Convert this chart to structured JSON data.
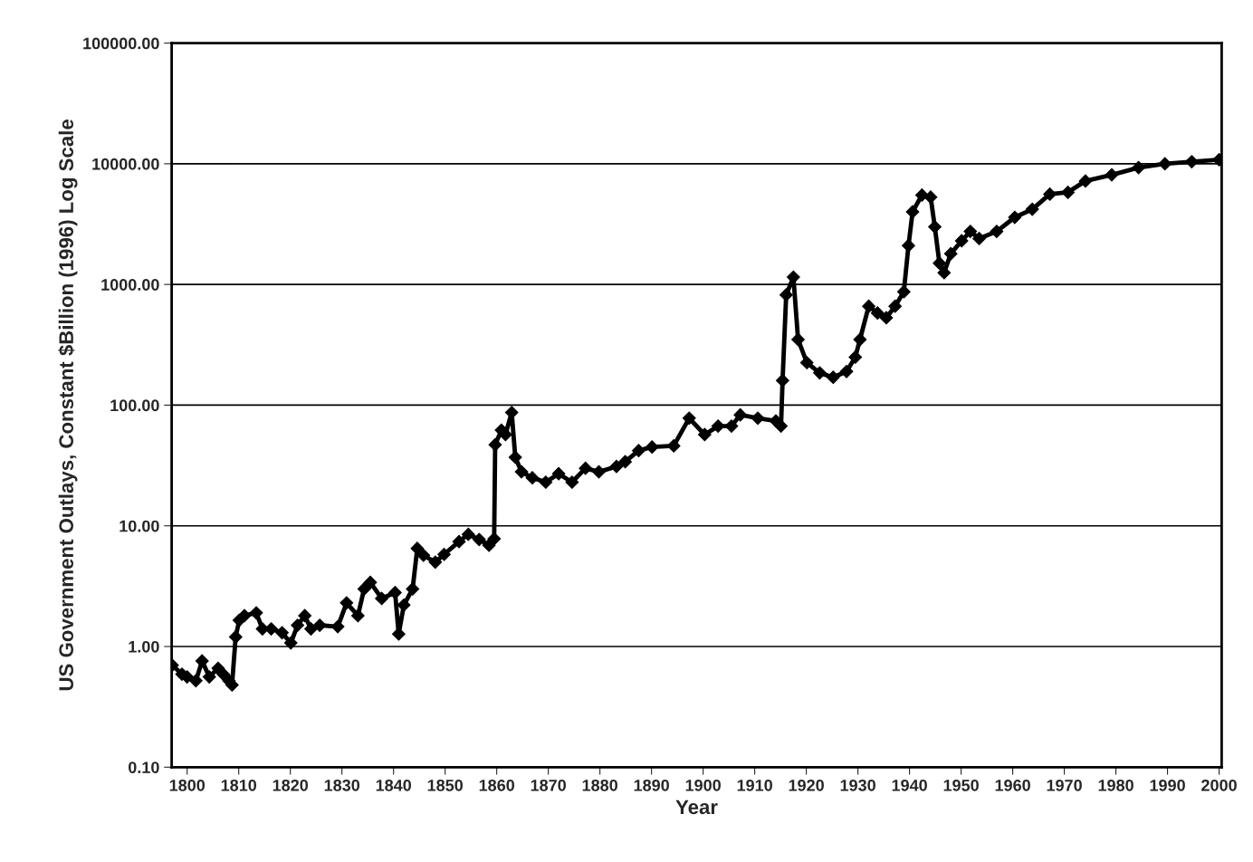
{
  "chart_data": {
    "type": "line",
    "xlabel": "Year",
    "ylabel": "US Government Outlays, Constant $Billion (1996) Log Scale",
    "log": "y",
    "grid": "y",
    "marker": "diamond",
    "line_style": "solid",
    "xlim": [
      1797,
      2000.5
    ],
    "xticks": [
      1800,
      1810,
      1820,
      1830,
      1840,
      1850,
      1860,
      1870,
      1880,
      1890,
      1900,
      1910,
      1920,
      1930,
      1940,
      1950,
      1960,
      1970,
      1980,
      1990,
      2000
    ],
    "ylim": [
      0.1,
      100000
    ],
    "yticks": [
      {
        "value": 0.1,
        "label": "0.10"
      },
      {
        "value": 1,
        "label": "1.00"
      },
      {
        "value": 10,
        "label": "10.00"
      },
      {
        "value": 100,
        "label": "100.00"
      },
      {
        "value": 1000,
        "label": "1000.00"
      },
      {
        "value": 10000,
        "label": "10000.00"
      },
      {
        "value": 100000,
        "label": "100000.00"
      }
    ],
    "series": [
      {
        "color": "#000000",
        "x": [
          1797.1,
          1799,
          1800,
          1801.7,
          1802.9,
          1804.3,
          1806,
          1807,
          1808.1,
          1808.7,
          1809.4,
          1810.1,
          1811.1,
          1813.4,
          1814.6,
          1816.3,
          1818.4,
          1820.1,
          1821.4,
          1822.8,
          1824,
          1825.7,
          1829.2,
          1830.9,
          1833.1,
          1834.3,
          1835.5,
          1837.7,
          1840.3,
          1841,
          1842,
          1843.7,
          1844.6,
          1845.8,
          1848.1,
          1849.8,
          1852.7,
          1854.5,
          1856.6,
          1858.5,
          1859.5,
          1859.7,
          1860.9,
          1861.7,
          1862.9,
          1863.6,
          1864.8,
          1866.9,
          1869.5,
          1872,
          1874.6,
          1877.2,
          1879.8,
          1883.2,
          1884.9,
          1887.5,
          1890.1,
          1894.3,
          1897.3,
          1900.3,
          1902.9,
          1905.5,
          1907.2,
          1910.6,
          1914.1,
          1915.1,
          1915.4,
          1916.1,
          1917.5,
          1918.4,
          1920.1,
          1922.6,
          1925.2,
          1927.8,
          1929.5,
          1930.4,
          1932.1,
          1933.8,
          1935.5,
          1937.2,
          1938.9,
          1939.8,
          1940.6,
          1942.4,
          1944.1,
          1944.9,
          1945.8,
          1946.7,
          1948,
          1950.1,
          1951.8,
          1953.5,
          1956.9,
          1960.4,
          1963.8,
          1967.2,
          1970.7,
          1974.1,
          1979.2,
          1984.4,
          1989.5,
          1994.7,
          2000
        ],
        "values": [
          0.7,
          0.59,
          0.56,
          0.52,
          0.76,
          0.56,
          0.66,
          0.59,
          0.52,
          0.48,
          1.2,
          1.65,
          1.8,
          1.9,
          1.4,
          1.4,
          1.3,
          1.07,
          1.5,
          1.8,
          1.4,
          1.5,
          1.46,
          2.3,
          1.8,
          3.0,
          3.4,
          2.5,
          2.8,
          1.27,
          2.2,
          3.0,
          6.5,
          5.7,
          5.0,
          5.8,
          7.4,
          8.5,
          7.7,
          6.9,
          7.8,
          47,
          62,
          57,
          87,
          37,
          28,
          25,
          23,
          27,
          23,
          30,
          28,
          31,
          34,
          42,
          45,
          46,
          78,
          57,
          67,
          67,
          83,
          78,
          74,
          67,
          160,
          820,
          1150,
          350,
          225,
          185,
          170,
          190,
          250,
          350,
          660,
          580,
          530,
          660,
          870,
          2100,
          4000,
          5500,
          5300,
          3000,
          1500,
          1250,
          1800,
          2300,
          2750,
          2400,
          2750,
          3600,
          4200,
          5600,
          5800,
          7200,
          8100,
          9300,
          10000,
          10400,
          10800
        ]
      }
    ]
  }
}
